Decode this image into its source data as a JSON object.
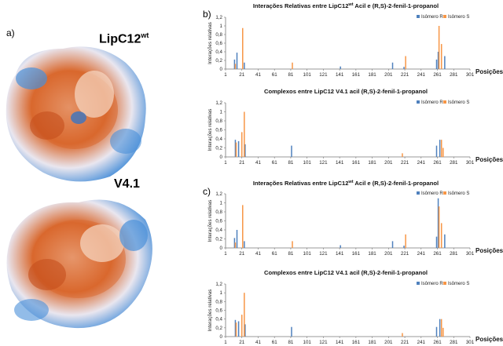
{
  "panels": {
    "a": "a)",
    "b": "b)",
    "c": "c)"
  },
  "proteins": {
    "top": {
      "name": "LipC12",
      "sup": "wt"
    },
    "bottom": {
      "name": "V4.1"
    }
  },
  "colors": {
    "series_r": "#4f81bd",
    "series_s": "#f79646"
  },
  "chart_data": [
    {
      "type": "bar",
      "panel": "b",
      "title_main": "Interações Relativas entre LipC12",
      "title_sup": "wt",
      "title_rest": " Acil e (R,S)-2-fenil-1-propanol",
      "ylabel": "Interações relativas",
      "xlabel": "Posições",
      "ylim": [
        0,
        1.2
      ],
      "yticks": [
        "0",
        "0,2",
        "0,4",
        "0,6",
        "0,8",
        "1",
        "1,2"
      ],
      "xticks": [
        1,
        21,
        41,
        61,
        81,
        101,
        121,
        141,
        161,
        181,
        201,
        221,
        241,
        261,
        281,
        301
      ],
      "legend": [
        "Isômero R",
        "Isômero S"
      ],
      "legend_position": "top-right",
      "series": [
        {
          "name": "Isômero R",
          "points": [
            [
              12,
              0.22
            ],
            [
              15,
              0.38
            ],
            [
              24,
              0.15
            ],
            [
              142,
              0.06
            ],
            [
              206,
              0.15
            ],
            [
              220,
              0.05
            ],
            [
              260,
              0.22
            ],
            [
              262,
              0.4
            ],
            [
              270,
              0.3
            ]
          ]
        },
        {
          "name": "Isômero S",
          "points": [
            [
              13,
              0.12
            ],
            [
              22,
              0.95
            ],
            [
              83,
              0.15
            ],
            [
              222,
              0.3
            ],
            [
              263,
              1.0
            ],
            [
              266,
              0.58
            ]
          ]
        }
      ]
    },
    {
      "type": "bar",
      "panel": "b",
      "title_main": "Complexos entre LipC12 V4.1 acil (R,S)-2-fenil-1-propanol",
      "ylabel": "Interações relativas",
      "xlabel": "Posições",
      "ylim": [
        0,
        1.2
      ],
      "yticks": [
        "0",
        "0,2",
        "0,4",
        "0,6",
        "0,8",
        "1",
        "1,2"
      ],
      "xticks": [
        1,
        21,
        41,
        61,
        81,
        101,
        121,
        141,
        161,
        181,
        201,
        221,
        241,
        261,
        281,
        301
      ],
      "legend": [
        "Isômero R",
        "Isômero S"
      ],
      "legend_position": "top-right",
      "series": [
        {
          "name": "Isômero R",
          "points": [
            [
              13,
              0.38
            ],
            [
              17,
              0.35
            ],
            [
              25,
              0.28
            ],
            [
              82,
              0.25
            ],
            [
              260,
              0.25
            ],
            [
              264,
              0.38
            ]
          ]
        },
        {
          "name": "Isômero S",
          "points": [
            [
              14,
              0.32
            ],
            [
              21,
              0.55
            ],
            [
              24,
              1.0
            ],
            [
              218,
              0.08
            ],
            [
              266,
              0.38
            ],
            [
              268,
              0.2
            ]
          ]
        }
      ]
    },
    {
      "type": "bar",
      "panel": "c",
      "title_main": "Interações Relativas entre LipC12",
      "title_sup": "wt",
      "title_rest": " Acil e (R,S)-2-fenil-1-propanol",
      "ylabel": "Interações relativas",
      "xlabel": "Posições",
      "ylim": [
        0,
        1.2
      ],
      "yticks": [
        "0",
        "0,2",
        "0,4",
        "0,6",
        "0,8",
        "1",
        "1,2"
      ],
      "xticks": [
        1,
        21,
        41,
        61,
        81,
        101,
        121,
        141,
        161,
        181,
        201,
        221,
        241,
        261,
        281,
        301
      ],
      "legend": [
        "Isômero R",
        "Isômero S"
      ],
      "legend_position": "top-right",
      "series": [
        {
          "name": "Isômero R",
          "points": [
            [
              12,
              0.22
            ],
            [
              15,
              0.4
            ],
            [
              24,
              0.15
            ],
            [
              142,
              0.06
            ],
            [
              206,
              0.15
            ],
            [
              220,
              0.05
            ],
            [
              260,
              0.25
            ],
            [
              262,
              1.1
            ],
            [
              270,
              0.3
            ]
          ]
        },
        {
          "name": "Isômero S",
          "points": [
            [
              13,
              0.12
            ],
            [
              22,
              0.95
            ],
            [
              83,
              0.15
            ],
            [
              222,
              0.3
            ],
            [
              263,
              0.92
            ],
            [
              266,
              0.55
            ]
          ]
        }
      ]
    },
    {
      "type": "bar",
      "panel": "c",
      "title_main": "Complexos entre LipC12 V4.1 acil (R,S)-2-fenil-1-propanol",
      "ylabel": "Interações relativas",
      "xlabel": "Posições",
      "ylim": [
        0,
        1.2
      ],
      "yticks": [
        "0",
        "0,2",
        "0,4",
        "0,6",
        "0,8",
        "1",
        "1,2"
      ],
      "xticks": [
        1,
        21,
        41,
        61,
        81,
        101,
        121,
        141,
        161,
        181,
        201,
        221,
        241,
        261,
        281,
        301
      ],
      "legend": [
        "Isômero R",
        "Isômero S"
      ],
      "legend_position": "top-right",
      "series": [
        {
          "name": "Isômero R",
          "points": [
            [
              13,
              0.38
            ],
            [
              17,
              0.35
            ],
            [
              25,
              0.28
            ],
            [
              82,
              0.22
            ],
            [
              260,
              0.22
            ],
            [
              264,
              0.4
            ]
          ]
        },
        {
          "name": "Isômero S",
          "points": [
            [
              14,
              0.32
            ],
            [
              21,
              0.5
            ],
            [
              24,
              1.0
            ],
            [
              218,
              0.08
            ],
            [
              266,
              0.4
            ],
            [
              268,
              0.2
            ]
          ]
        }
      ]
    }
  ]
}
